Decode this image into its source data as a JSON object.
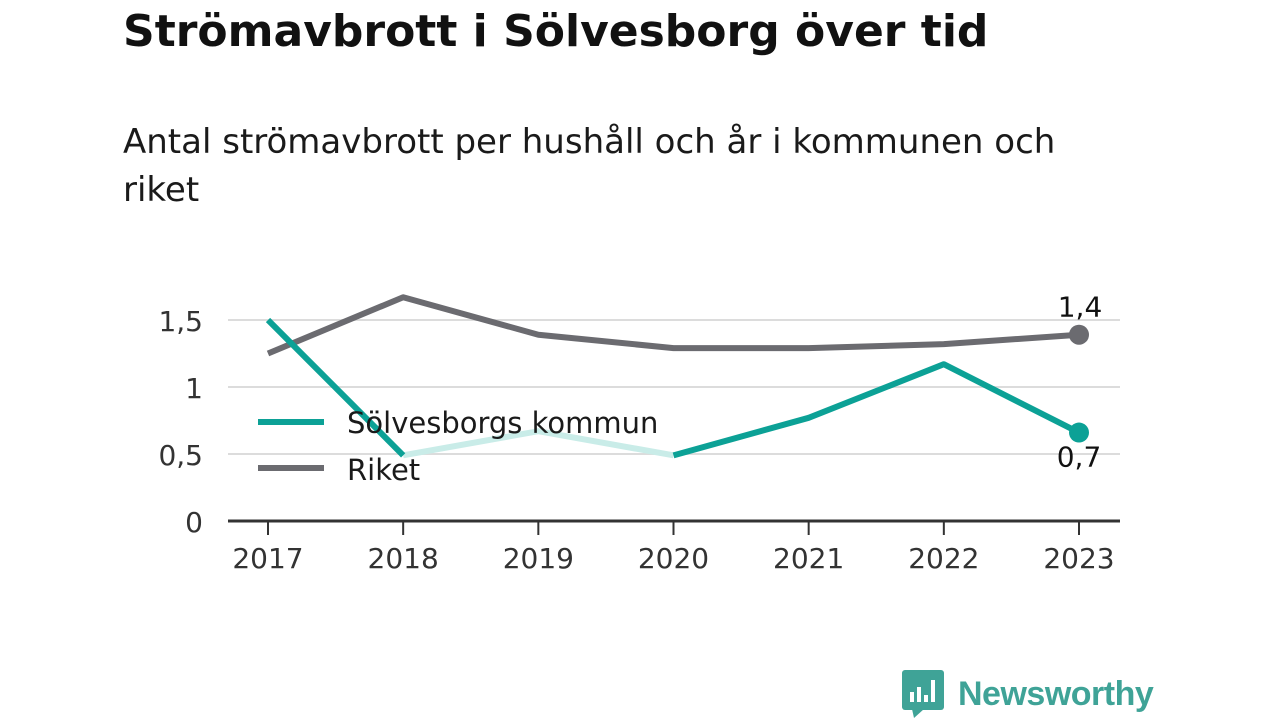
{
  "header": {
    "title": "Strömavbrott i Sölvesborg över tid",
    "subtitle": "Antal strömavbrott per hushåll och år i kommunen och riket"
  },
  "brand": {
    "name": "Newsworthy",
    "logo_icon": "bar-chart-speech-bubble-icon",
    "color": "#3fa397"
  },
  "chart_data": {
    "type": "line",
    "x": [
      "2017",
      "2018",
      "2019",
      "2020",
      "2021",
      "2022",
      "2023"
    ],
    "ylim": [
      0,
      1.6
    ],
    "yticks": [
      {
        "value": 0,
        "label": "0"
      },
      {
        "value": 0.5,
        "label": "0,5"
      },
      {
        "value": 1,
        "label": "1"
      },
      {
        "value": 1.5,
        "label": "1,5"
      }
    ],
    "grid": true,
    "legend_position": "left-middle",
    "series": [
      {
        "name": "Sölvesborgs kommun",
        "color": "#0ca196",
        "faded_color": "#c9ece8",
        "values": [
          1.5,
          0.49,
          0.67,
          0.49,
          0.77,
          1.17,
          0.66
        ],
        "end_label": "0,7"
      },
      {
        "name": "Riket",
        "color": "#6b6b70",
        "values": [
          1.25,
          1.67,
          1.39,
          1.29,
          1.29,
          1.32,
          1.39
        ],
        "end_label": "1,4"
      }
    ]
  }
}
